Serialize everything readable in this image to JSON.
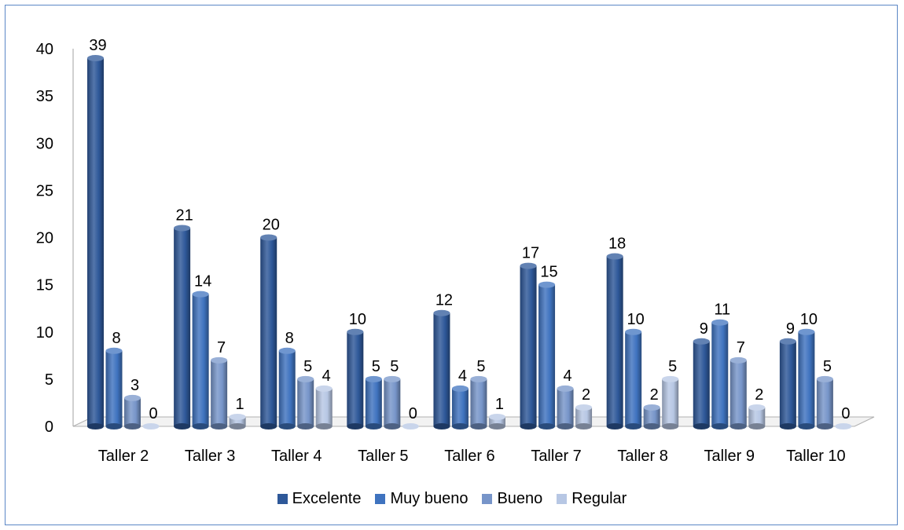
{
  "chart_data": {
    "type": "bar",
    "categories": [
      "Taller 2",
      "Taller 3",
      "Taller 4",
      "Taller 5",
      "Taller 6",
      "Taller 7",
      "Taller 8",
      "Taller 9",
      "Taller 10"
    ],
    "series": [
      {
        "name": "Excelente",
        "color": "#2e5899",
        "values": [
          39,
          21,
          20,
          10,
          12,
          17,
          18,
          9,
          9
        ]
      },
      {
        "name": "Muy bueno",
        "color": "#3f73bf",
        "values": [
          8,
          14,
          8,
          5,
          4,
          15,
          10,
          11,
          10
        ]
      },
      {
        "name": "Bueno",
        "color": "#7795c9",
        "values": [
          3,
          7,
          5,
          5,
          5,
          4,
          2,
          7,
          5
        ]
      },
      {
        "name": "Regular",
        "color": "#b7c7e4",
        "values": [
          0,
          1,
          4,
          0,
          1,
          2,
          5,
          2,
          0
        ]
      }
    ],
    "yticks": [
      "0",
      "5",
      "10",
      "15",
      "20",
      "25",
      "30",
      "35",
      "40"
    ],
    "ylim": [
      0,
      40
    ],
    "legend_position": "bottom",
    "style": "3d-cylinder"
  }
}
